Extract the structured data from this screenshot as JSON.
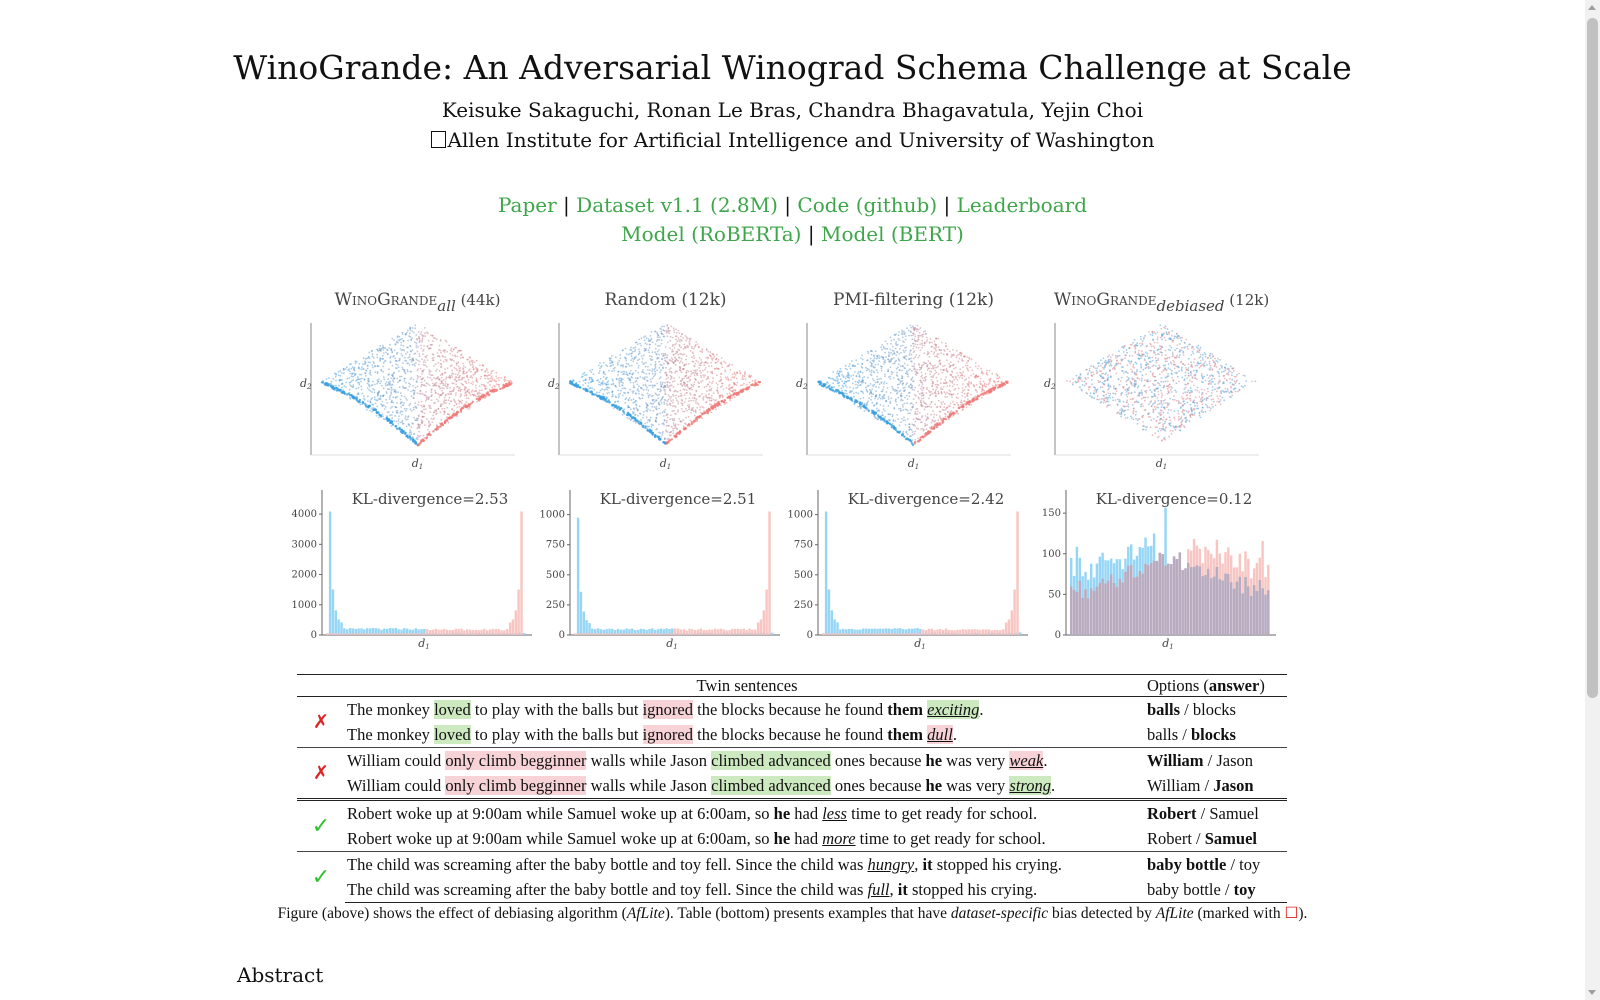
{
  "header": {
    "title": "WinoGrande: An Adversarial Winograd Schema Challenge at Scale",
    "authors": "Keisuke Sakaguchi, Ronan Le Bras, Chandra Bhagavatula, Yejin Choi",
    "affiliation": "Allen Institute for Artificial Intelligence and University of Washington"
  },
  "links": {
    "row1": [
      "Paper",
      "Dataset v1.1 (2.8M)",
      "Code (github)",
      "Leaderboard"
    ],
    "row2": [
      "Model (RoBERTa)",
      "Model (BERT)"
    ],
    "separator": "|",
    "color": "#3ea64a"
  },
  "figure": {
    "scatter_panels": [
      {
        "title": "WinoGrande",
        "subscript": "all",
        "suffix": "(44k)",
        "xlabel": "d",
        "x_sub": "1",
        "ylabel": "d",
        "y_sub": "2"
      },
      {
        "title": "Random (12k)",
        "xlabel": "d",
        "x_sub": "1",
        "ylabel": "d",
        "y_sub": "2"
      },
      {
        "title": "PMI-filtering (12k)",
        "xlabel": "d",
        "x_sub": "1",
        "ylabel": "d",
        "y_sub": "2"
      },
      {
        "title": "WinoGrande",
        "subscript": "debiased",
        "suffix": "(12k)",
        "xlabel": "d",
        "x_sub": "1",
        "ylabel": "d",
        "y_sub": "2"
      }
    ],
    "colors": {
      "blue": "#3aa0e0",
      "red": "#ef7b78",
      "blue_bar": "#8fd3f5",
      "red_bar": "#f6bcb8",
      "overlap_bar": "#b2a7bf"
    }
  },
  "chart_data": [
    {
      "type": "bar",
      "title": "KL-divergence=2.53",
      "xlabel": "d1",
      "yticks": [
        0,
        1000,
        2000,
        3000,
        4000
      ],
      "ylim": [
        0,
        4300
      ]
    },
    {
      "type": "bar",
      "title": "KL-divergence=2.51",
      "xlabel": "d1",
      "yticks": [
        0,
        250,
        500,
        750,
        1000
      ],
      "ylim": [
        0,
        1080
      ]
    },
    {
      "type": "bar",
      "title": "KL-divergence=2.42",
      "xlabel": "d1",
      "yticks": [
        0,
        250,
        500,
        750,
        1000
      ],
      "ylim": [
        0,
        1080
      ]
    },
    {
      "type": "bar",
      "title": "KL-divergence=0.12",
      "xlabel": "d1",
      "yticks": [
        0,
        50,
        100,
        150
      ],
      "ylim": [
        0,
        160
      ]
    }
  ],
  "table": {
    "header_sentences": "Twin sentences",
    "header_options": "Options",
    "header_answer": "answer"
  },
  "caption": {
    "part1": "Figure (above) shows the effect of debiasing algorithm (",
    "aflite": "AfLite",
    "part2": "). Table (bottom) presents examples that have ",
    "italic": "dataset-specific",
    "part3": " bias detected by ",
    "part4": " (marked with ",
    "box": "☐",
    "part5": ")."
  },
  "abstract_heading": "Abstract"
}
